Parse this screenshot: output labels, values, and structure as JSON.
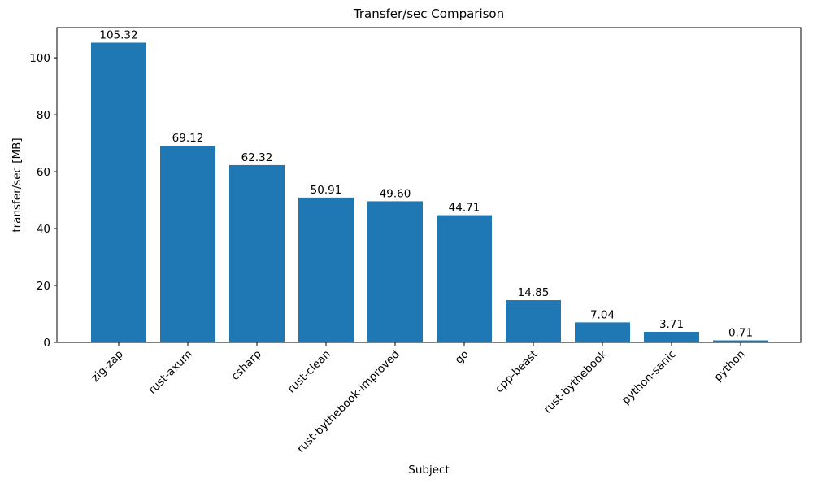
{
  "chart_data": {
    "type": "bar",
    "title": "Transfer/sec Comparison",
    "xlabel": "Subject",
    "ylabel": "transfer/sec [MB]",
    "categories": [
      "zig-zap",
      "rust-axum",
      "csharp",
      "rust-clean",
      "rust-bythebook-improved",
      "go",
      "cpp-beast",
      "rust-bythebook",
      "python-sanic",
      "python"
    ],
    "values": [
      105.32,
      69.12,
      62.32,
      50.91,
      49.6,
      44.71,
      14.85,
      7.04,
      3.71,
      0.71
    ],
    "value_labels": [
      "105.32",
      "69.12",
      "62.32",
      "50.91",
      "49.60",
      "44.71",
      "14.85",
      "7.04",
      "3.71",
      "0.71"
    ],
    "yticks": [
      "0",
      "20",
      "40",
      "60",
      "80",
      "100"
    ],
    "ytick_values": [
      0,
      20,
      40,
      60,
      80,
      100
    ],
    "ylim": [
      0,
      110.6
    ],
    "bar_color": "#1f77b4",
    "axis_color": "#000000",
    "grid": false,
    "legend_position": "none",
    "x_label_rotation_deg": 45
  }
}
